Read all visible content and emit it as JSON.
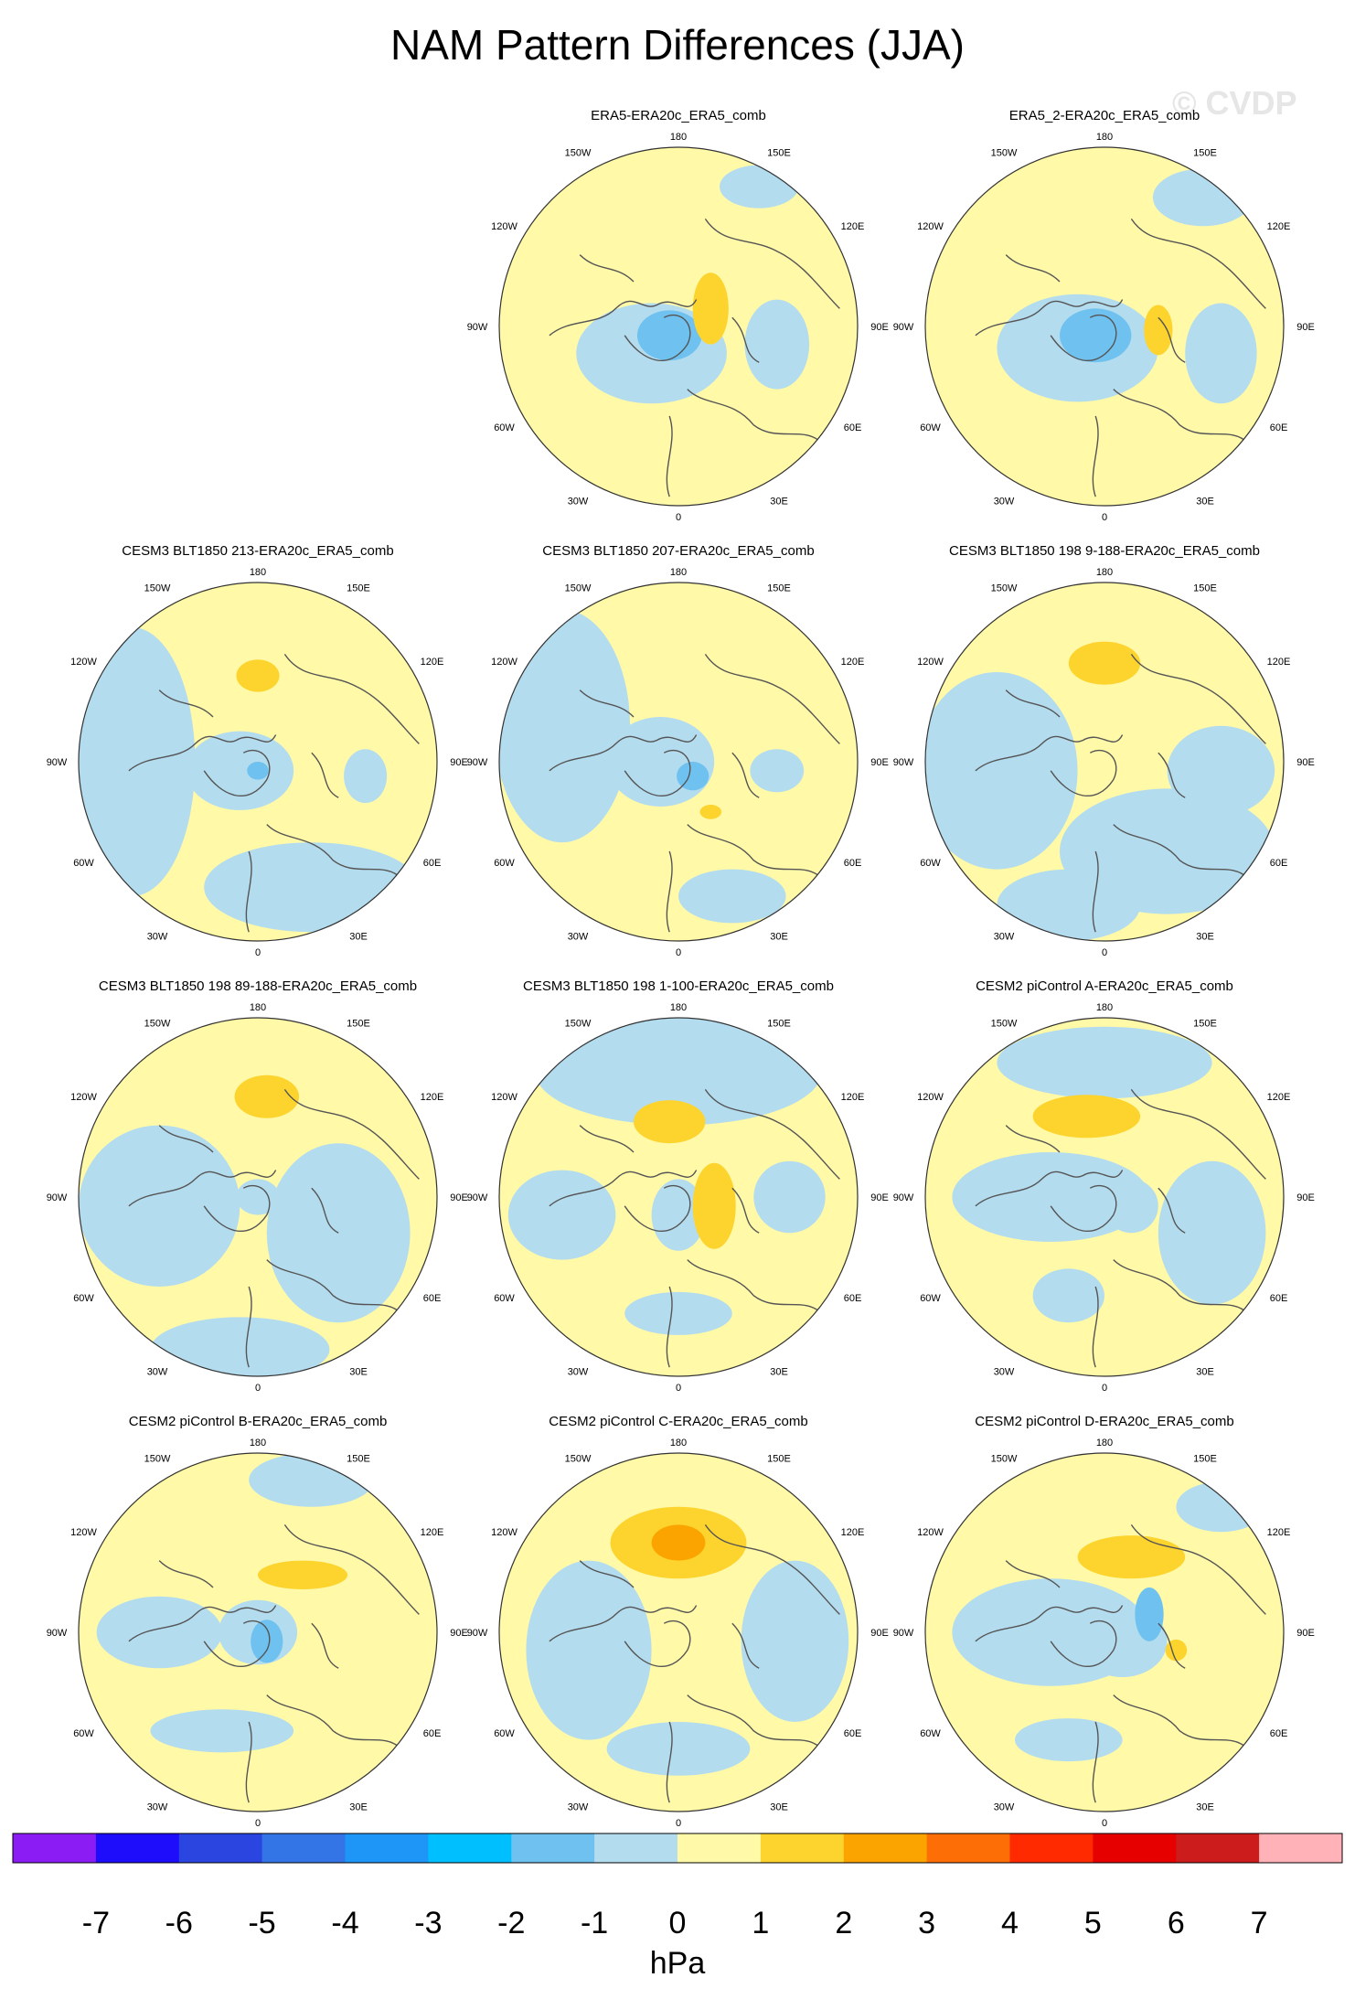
{
  "title": "NAM Pattern Differences (JJA)",
  "watermark": "© CVDP",
  "colors": {
    "neg1": "#b4dcef",
    "pos1": "#fff9a8",
    "pos2": "#fdd42e",
    "pos3": "#fba400",
    "neg2": "#6fc2ef",
    "coast": "#555555",
    "rim": "#333333"
  },
  "chart_data": {
    "type": "heatmap",
    "title": "NAM Pattern Differences (JJA)",
    "units": "hPa",
    "projection": "north-polar-stereographic",
    "longitude_labels": [
      "180",
      "150E",
      "120E",
      "90E",
      "60E",
      "30E",
      "0",
      "30W",
      "60W",
      "90W",
      "120W",
      "150W"
    ],
    "colorbar": {
      "levels": [
        "-7",
        "-6",
        "-5",
        "-4",
        "-3",
        "-2",
        "-1",
        "0",
        "1",
        "2",
        "3",
        "4",
        "5",
        "6",
        "7"
      ],
      "colors": [
        "#8c1cf4",
        "#1d0dfb",
        "#2b45e0",
        "#3374e6",
        "#1e96f8",
        "#00bfff",
        "#6fc2ef",
        "#b4dcef",
        "#fff9a8",
        "#fdd42e",
        "#fba400",
        "#fe6e06",
        "#ff2a00",
        "#e70000",
        "#cc1c1c",
        "#ffb3b8"
      ]
    },
    "panels": [
      {
        "title": "ERA5-ERA20c_ERA5_comb",
        "min": -3,
        "max": 2
      },
      {
        "title": "ERA5_2-ERA20c_ERA5_comb",
        "min": -3,
        "max": 2
      },
      {
        "title": "CESM3 BLT1850 213-ERA20c_ERA5_comb",
        "min": -2,
        "max": 2
      },
      {
        "title": "CESM3 BLT1850 207-ERA20c_ERA5_comb",
        "min": -3,
        "max": 2
      },
      {
        "title": "CESM3 BLT1850 198 9-188-ERA20c_ERA5_comb",
        "min": -1,
        "max": 2
      },
      {
        "title": "CESM3 BLT1850 198 89-188-ERA20c_ERA5_comb",
        "min": -2,
        "max": 2
      },
      {
        "title": "CESM3 BLT1850 198 1-100-ERA20c_ERA5_comb",
        "min": -1,
        "max": 2
      },
      {
        "title": "CESM2 piControl A-ERA20c_ERA5_comb",
        "min": -1,
        "max": 2
      },
      {
        "title": "CESM2 piControl B-ERA20c_ERA5_comb",
        "min": -2,
        "max": 2
      },
      {
        "title": "CESM2 piControl C-ERA20c_ERA5_comb",
        "min": -1,
        "max": 3
      },
      {
        "title": "CESM2 piControl D-ERA20c_ERA5_comb",
        "min": -2,
        "max": 2
      }
    ]
  }
}
